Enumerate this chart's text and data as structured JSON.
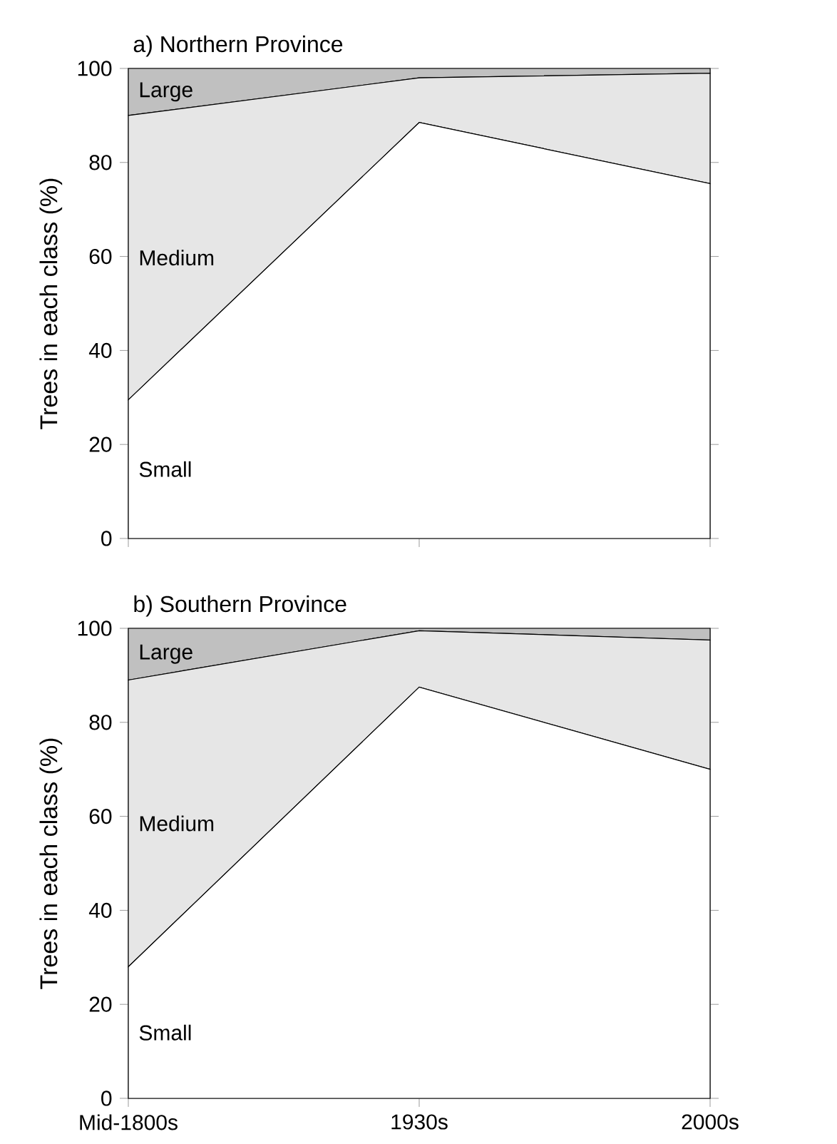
{
  "chart_data": [
    {
      "type": "area",
      "title": "a) Northern Province",
      "ylabel": "Trees in each class (%)",
      "stacked": true,
      "categories": [
        null,
        null,
        null
      ],
      "tick_labels": "y",
      "ylim": [
        0,
        100
      ],
      "yticks": [
        0,
        20,
        40,
        60,
        80,
        100
      ],
      "series": [
        {
          "name": "Small",
          "color": "#ffffff",
          "values": [
            29.5,
            88.5,
            75.5
          ]
        },
        {
          "name": "Medium",
          "color": "#e6e6e6",
          "values": [
            60.5,
            9.5,
            23.5
          ]
        },
        {
          "name": "Large",
          "color": "#c0c0c0",
          "values": [
            10,
            2,
            1
          ]
        }
      ]
    },
    {
      "type": "area",
      "title": "b) Southern Province",
      "ylabel": "Trees in each class (%)",
      "stacked": true,
      "categories": [
        "Mid-1800s",
        "1930s",
        "2000s"
      ],
      "ylim": [
        0,
        100
      ],
      "yticks": [
        0,
        20,
        40,
        60,
        80,
        100
      ],
      "series": [
        {
          "name": "Small",
          "color": "#ffffff",
          "values": [
            28,
            87.5,
            70
          ]
        },
        {
          "name": "Medium",
          "color": "#e6e6e6",
          "values": [
            61,
            12,
            27.5
          ]
        },
        {
          "name": "Large",
          "color": "#c0c0c0",
          "values": [
            11,
            0.5,
            2.5
          ]
        }
      ]
    }
  ]
}
